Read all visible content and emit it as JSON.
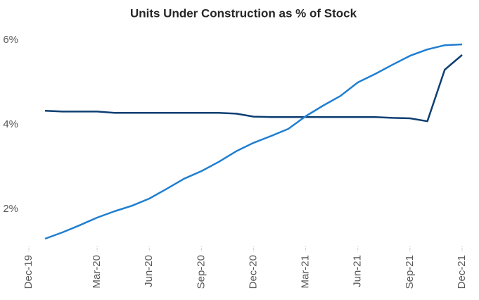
{
  "chart_data": {
    "type": "line",
    "title": "Units Under Construction as % of Stock",
    "categories": [
      "Dec-19",
      null,
      null,
      "Mar-20",
      null,
      null,
      "Jun-20",
      null,
      null,
      "Sep-20",
      null,
      null,
      "Dec-20",
      null,
      null,
      "Mar-21",
      null,
      null,
      "Jun-21",
      null,
      null,
      "Sep-21",
      null,
      null,
      "Dec-21"
    ],
    "series": [
      {
        "color": "#0d3f73",
        "values": [
          4.33,
          4.31,
          4.31,
          4.31,
          4.28,
          4.28,
          4.28,
          4.28,
          4.28,
          4.28,
          4.28,
          4.26,
          4.19,
          4.18,
          4.18,
          4.18,
          4.18,
          4.18,
          4.18,
          4.18,
          4.16,
          4.15,
          4.08,
          5.3,
          5.65
        ]
      },
      {
        "color": "#1f7fd1",
        "values": [
          1.3,
          1.45,
          1.62,
          1.8,
          1.95,
          2.08,
          2.25,
          2.48,
          2.72,
          2.9,
          3.12,
          3.37,
          3.57,
          3.73,
          3.9,
          4.2,
          4.45,
          4.68,
          5.0,
          5.2,
          5.42,
          5.63,
          5.78,
          5.88,
          5.9
        ]
      }
    ],
    "ylim": [
      1.2,
      6.0
    ],
    "yticks": [
      {
        "value": 2,
        "label": "2%"
      },
      {
        "value": 4,
        "label": "4%"
      },
      {
        "value": 6,
        "label": "6%"
      }
    ],
    "grid": false
  }
}
